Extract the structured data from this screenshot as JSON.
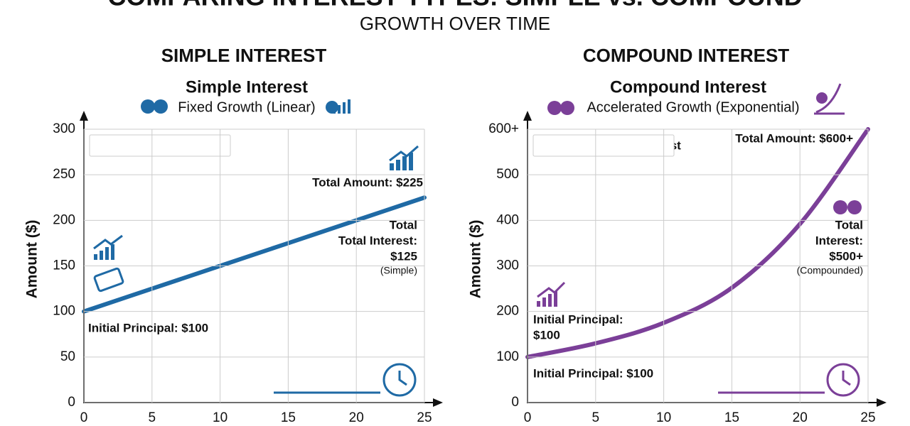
{
  "header": {
    "title": "COMPARING INTEREST TYPES: SIMPLE vs. COMPOUND",
    "subtitle": "GROWTH OVER TIME"
  },
  "chart_data": [
    {
      "type": "line",
      "heading": "SIMPLE INTEREST",
      "title": "Simple Interest",
      "subtitle": "Fixed Growth (Linear)",
      "y_label": "Amount ($)",
      "x": [
        0,
        5,
        10,
        15,
        20,
        25
      ],
      "series": [
        {
          "name": "Simple Interest",
          "color": "#1f6aa5",
          "values": [
            100,
            125,
            150,
            175,
            200,
            225
          ]
        }
      ],
      "xlim": [
        0,
        25
      ],
      "ylim": [
        0,
        300
      ],
      "xticks": [
        0,
        5,
        10,
        15,
        20,
        25
      ],
      "yticks": [
        0,
        50,
        100,
        150,
        200,
        250,
        300
      ],
      "grid": true,
      "legend": "upper left",
      "annotations": [
        "Total Amount: $225",
        "Total",
        "Total Interest:",
        "$125",
        "(Simple)",
        "Initial Principal: $100"
      ]
    },
    {
      "type": "line",
      "heading": "COMPOUND INTEREST",
      "title": "Compound Interest",
      "subtitle": "Accelerated Growth (Exponential)",
      "y_label": "Amount ($)",
      "x": [
        0,
        5,
        10,
        15,
        20,
        25
      ],
      "series": [
        {
          "name": "Compound Interest",
          "color": "#7b3f98",
          "values": [
            100,
            130,
            175,
            252,
            392,
            600
          ]
        }
      ],
      "xlim": [
        0,
        25
      ],
      "ylim": [
        0,
        600
      ],
      "xticks": [
        0,
        5,
        10,
        15,
        20,
        25
      ],
      "yticks": [
        0,
        100,
        200,
        300,
        400,
        500,
        {
          "value": 600,
          "label": "600+"
        }
      ],
      "grid": true,
      "legend": "upper left",
      "annotations": [
        "Total Amount: $600+",
        "Total",
        "Interest:",
        "$500+",
        "(Compounded)",
        "Initial Principal:",
        "$100",
        "Initial Principal: $100"
      ]
    }
  ]
}
